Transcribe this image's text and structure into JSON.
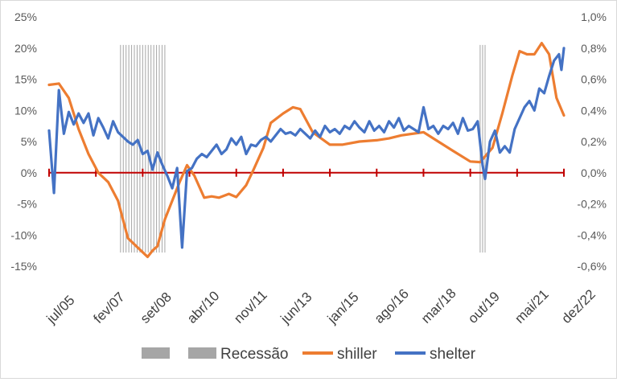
{
  "chart_data": {
    "type": "line",
    "title": "",
    "xlabel": "",
    "ylabel_left": "",
    "ylabel_right": "",
    "x_tick_labels": [
      "jul/05",
      "fev/07",
      "set/08",
      "abr/10",
      "nov/11",
      "jun/13",
      "jan/15",
      "ago/16",
      "mar/18",
      "out/19",
      "mai/21",
      "dez/22"
    ],
    "y_left": {
      "min": -15,
      "max": 25,
      "step": 5,
      "tick_labels": [
        "-15%",
        "-10%",
        "-5%",
        "0%",
        "5%",
        "10%",
        "15%",
        "20%",
        "25%"
      ]
    },
    "y_right": {
      "min": -0.6,
      "max": 1.0,
      "step": 0.2,
      "tick_labels": [
        "-0,6%",
        "-0,4%",
        "-0,2%",
        "0,0%",
        "0,2%",
        "0,4%",
        "0,6%",
        "0,8%",
        "1,0%"
      ]
    },
    "recessions": [
      {
        "label": "Recessão",
        "start": "dez/07",
        "end": "jun/09"
      },
      {
        "label": "Recessão",
        "start": "fev/20",
        "end": "abr/20"
      }
    ],
    "series": [
      {
        "name": "shiller",
        "axis": "left",
        "color": "#ED7D31",
        "points": [
          [
            "jul/05",
            14.1
          ],
          [
            "nov/05",
            14.3
          ],
          [
            "mar/06",
            12.0
          ],
          [
            "jul/06",
            7.0
          ],
          [
            "nov/06",
            3.0
          ],
          [
            "mar/07",
            0.0
          ],
          [
            "jul/07",
            -1.5
          ],
          [
            "nov/07",
            -4.5
          ],
          [
            "mar/08",
            -10.5
          ],
          [
            "jul/08",
            -12.0
          ],
          [
            "nov/08",
            -13.5
          ],
          [
            "jan/09",
            -12.5
          ],
          [
            "mar/09",
            -11.8
          ],
          [
            "jun/09",
            -7.5
          ],
          [
            "set/09",
            -4.5
          ],
          [
            "dez/09",
            -1.5
          ],
          [
            "mar/10",
            1.2
          ],
          [
            "jun/10",
            -0.5
          ],
          [
            "out/10",
            -4.0
          ],
          [
            "jan/11",
            -3.8
          ],
          [
            "abr/11",
            -4.0
          ],
          [
            "ago/11",
            -3.4
          ],
          [
            "nov/11",
            -3.9
          ],
          [
            "mar/12",
            -2.0
          ],
          [
            "jun/12",
            0.5
          ],
          [
            "out/12",
            4.0
          ],
          [
            "jan/13",
            8.0
          ],
          [
            "jun/13",
            9.5
          ],
          [
            "out/13",
            10.5
          ],
          [
            "jan/14",
            10.2
          ],
          [
            "jun/14",
            6.5
          ],
          [
            "jan/15",
            4.5
          ],
          [
            "jun/15",
            4.5
          ],
          [
            "jan/16",
            5.0
          ],
          [
            "ago/16",
            5.2
          ],
          [
            "jan/17",
            5.5
          ],
          [
            "jun/17",
            6.0
          ],
          [
            "mar/18",
            6.5
          ],
          [
            "set/18",
            5.0
          ],
          [
            "mar/19",
            3.5
          ],
          [
            "out/19",
            1.8
          ],
          [
            "fev/20",
            1.7
          ],
          [
            "jul/20",
            4.0
          ],
          [
            "nov/20",
            9.5
          ],
          [
            "mar/21",
            15.5
          ],
          [
            "jun/21",
            19.5
          ],
          [
            "set/21",
            19.0
          ],
          [
            "dez/21",
            19.0
          ],
          [
            "mar/22",
            20.8
          ],
          [
            "jun/22",
            19.0
          ],
          [
            "set/22",
            12.0
          ],
          [
            "dez/22",
            9.2
          ]
        ]
      },
      {
        "name": "shelter",
        "axis": "right",
        "color": "#4472C4",
        "points": [
          [
            "jul/05",
            0.27
          ],
          [
            "set/05",
            -0.13
          ],
          [
            "nov/05",
            0.53
          ],
          [
            "jan/06",
            0.25
          ],
          [
            "mar/06",
            0.39
          ],
          [
            "mai/06",
            0.31
          ],
          [
            "jul/06",
            0.38
          ],
          [
            "set/06",
            0.32
          ],
          [
            "nov/06",
            0.38
          ],
          [
            "jan/07",
            0.24
          ],
          [
            "mar/07",
            0.35
          ],
          [
            "mai/07",
            0.29
          ],
          [
            "jul/07",
            0.22
          ],
          [
            "set/07",
            0.33
          ],
          [
            "nov/07",
            0.26
          ],
          [
            "jan/08",
            0.23
          ],
          [
            "mar/08",
            0.2
          ],
          [
            "mai/08",
            0.18
          ],
          [
            "jul/08",
            0.21
          ],
          [
            "set/08",
            0.12
          ],
          [
            "nov/08",
            0.14
          ],
          [
            "jan/09",
            0.02
          ],
          [
            "mar/09",
            0.13
          ],
          [
            "mai/09",
            0.05
          ],
          [
            "jul/09",
            -0.02
          ],
          [
            "set/09",
            -0.1
          ],
          [
            "nov/09",
            0.03
          ],
          [
            "jan/10",
            -0.48
          ],
          [
            "mar/10",
            0.01
          ],
          [
            "mai/10",
            0.03
          ],
          [
            "jul/10",
            0.09
          ],
          [
            "set/10",
            0.12
          ],
          [
            "nov/10",
            0.1
          ],
          [
            "jan/11",
            0.14
          ],
          [
            "mar/11",
            0.18
          ],
          [
            "mai/11",
            0.12
          ],
          [
            "jul/11",
            0.15
          ],
          [
            "set/11",
            0.22
          ],
          [
            "nov/11",
            0.18
          ],
          [
            "jan/12",
            0.23
          ],
          [
            "mar/12",
            0.12
          ],
          [
            "mai/12",
            0.18
          ],
          [
            "jul/12",
            0.17
          ],
          [
            "set/12",
            0.21
          ],
          [
            "nov/12",
            0.23
          ],
          [
            "jan/13",
            0.2
          ],
          [
            "mar/13",
            0.24
          ],
          [
            "mai/13",
            0.28
          ],
          [
            "jul/13",
            0.25
          ],
          [
            "set/13",
            0.26
          ],
          [
            "nov/13",
            0.24
          ],
          [
            "jan/14",
            0.28
          ],
          [
            "mar/14",
            0.25
          ],
          [
            "mai/14",
            0.22
          ],
          [
            "jul/14",
            0.27
          ],
          [
            "set/14",
            0.23
          ],
          [
            "nov/14",
            0.3
          ],
          [
            "jan/15",
            0.26
          ],
          [
            "mar/15",
            0.28
          ],
          [
            "mai/15",
            0.25
          ],
          [
            "jul/15",
            0.3
          ],
          [
            "set/15",
            0.28
          ],
          [
            "nov/15",
            0.33
          ],
          [
            "jan/16",
            0.29
          ],
          [
            "mar/16",
            0.26
          ],
          [
            "mai/16",
            0.33
          ],
          [
            "jul/16",
            0.27
          ],
          [
            "set/16",
            0.3
          ],
          [
            "nov/16",
            0.26
          ],
          [
            "jan/17",
            0.33
          ],
          [
            "mar/17",
            0.29
          ],
          [
            "mai/17",
            0.35
          ],
          [
            "jul/17",
            0.27
          ],
          [
            "set/17",
            0.3
          ],
          [
            "nov/17",
            0.28
          ],
          [
            "jan/18",
            0.26
          ],
          [
            "mar/18",
            0.42
          ],
          [
            "mai/18",
            0.28
          ],
          [
            "jul/18",
            0.3
          ],
          [
            "set/18",
            0.25
          ],
          [
            "nov/18",
            0.3
          ],
          [
            "jan/19",
            0.28
          ],
          [
            "mar/19",
            0.32
          ],
          [
            "mai/19",
            0.25
          ],
          [
            "jul/19",
            0.35
          ],
          [
            "set/19",
            0.27
          ],
          [
            "nov/19",
            0.28
          ],
          [
            "jan/20",
            0.33
          ],
          [
            "mar/20",
            0.05
          ],
          [
            "abr/20",
            -0.04
          ],
          [
            "jun/20",
            0.2
          ],
          [
            "ago/20",
            0.27
          ],
          [
            "out/20",
            0.13
          ],
          [
            "dez/20",
            0.17
          ],
          [
            "fev/21",
            0.13
          ],
          [
            "abr/21",
            0.28
          ],
          [
            "jun/21",
            0.35
          ],
          [
            "ago/21",
            0.42
          ],
          [
            "out/21",
            0.46
          ],
          [
            "dez/21",
            0.4
          ],
          [
            "fev/22",
            0.54
          ],
          [
            "abr/22",
            0.51
          ],
          [
            "jun/22",
            0.62
          ],
          [
            "ago/22",
            0.72
          ],
          [
            "out/22",
            0.76
          ],
          [
            "nov/22",
            0.66
          ],
          [
            "dez/22",
            0.8
          ]
        ]
      }
    ],
    "legend": {
      "position": "bottom",
      "entries": [
        {
          "label": "Recessão",
          "kind": "recession"
        },
        {
          "label": "shiller",
          "kind": "line",
          "color": "#ED7D31"
        },
        {
          "label": "shelter",
          "kind": "line",
          "color": "#4472C4"
        }
      ]
    },
    "zero_line_color": "#C00000",
    "grid": false
  }
}
